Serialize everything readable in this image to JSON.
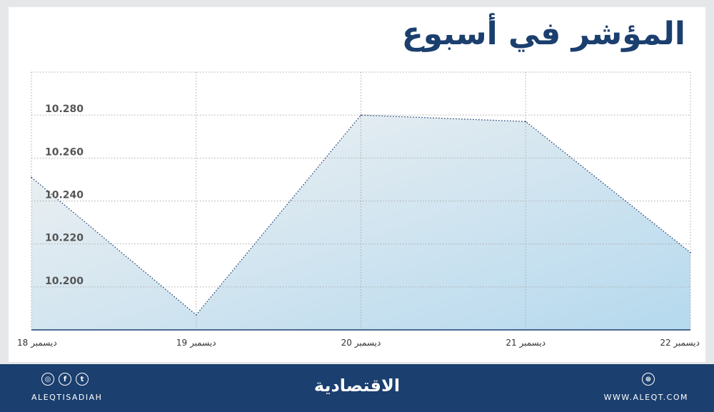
{
  "title": "المؤشر في أسبوع",
  "chart_data": {
    "type": "area",
    "title": "المؤشر في أسبوع",
    "categories": [
      "18 ديسمبر",
      "19 ديسمبر",
      "20 ديسمبر",
      "21 ديسمبر",
      "22 ديسمبر"
    ],
    "values": [
      10.251,
      10.187,
      10.28,
      10.277,
      10.216
    ],
    "yticks": [
      "10.200",
      "10.220",
      "10.240",
      "10.260",
      "10.280"
    ],
    "ylim": [
      10.18,
      10.3
    ],
    "grid": true,
    "colors": {
      "line": "#1b3f6e",
      "fill_top": "#f2f2f2",
      "fill_bottom": "#b5d9ee"
    }
  },
  "footer": {
    "handle": "ALEQTISADIAH",
    "logo": "الاقتصادية",
    "website": "WWW.ALEQT.COM",
    "icons": [
      "instagram-icon",
      "facebook-icon",
      "twitter-icon",
      "web-icon"
    ]
  }
}
